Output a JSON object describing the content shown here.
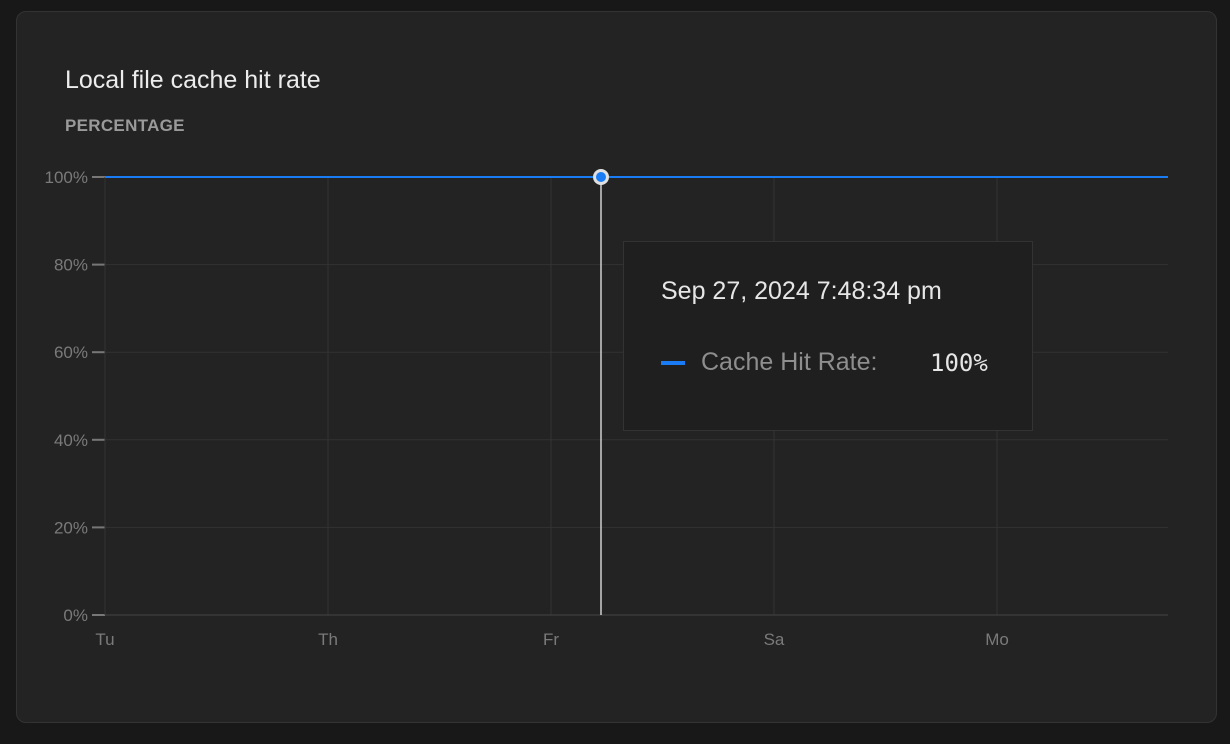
{
  "chart_data": {
    "type": "line",
    "title": "Local file cache hit rate",
    "ylabel": "PERCENTAGE",
    "xlabel": "",
    "x_tick_labels": [
      "Tu",
      "Th",
      "Fr",
      "Sa",
      "Mo"
    ],
    "y_tick_labels": [
      "0%",
      "20%",
      "40%",
      "60%",
      "80%",
      "100%"
    ],
    "y_ticks": [
      0,
      20,
      40,
      60,
      80,
      100
    ],
    "ylim": [
      0,
      100
    ],
    "grid": true,
    "series": [
      {
        "name": "Cache Hit Rate",
        "color": "#1a7cf5",
        "values": [
          100,
          100,
          100,
          100,
          100,
          100
        ]
      }
    ],
    "tooltip": {
      "date": "Sep 27, 2024 7:48:34 pm",
      "series_name": "Cache Hit Rate:",
      "value": "100%"
    }
  }
}
